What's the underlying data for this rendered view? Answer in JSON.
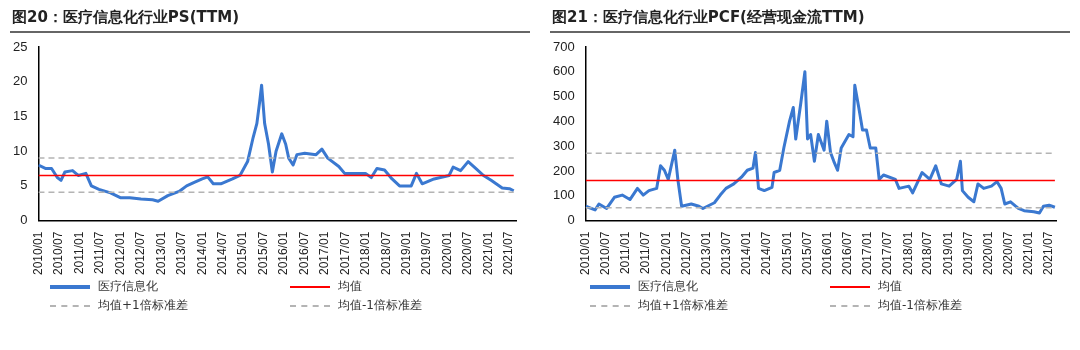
{
  "chart_data": [
    {
      "type": "line",
      "title": "图20：医疗信息化行业PS(TTM)",
      "legend": "bottom",
      "grid": false,
      "marker": "none",
      "xlim": [
        "2010-01-01",
        "2021-09-01"
      ],
      "xticks": [
        {
          "value": "2010-01",
          "label": "2010/01"
        },
        {
          "value": "2010-07",
          "label": "2010/07"
        },
        {
          "value": "2011-01",
          "label": "2011/01"
        },
        {
          "value": "2011-07",
          "label": "2011/07"
        },
        {
          "value": "2012-01",
          "label": "2012/01"
        },
        {
          "value": "2012-07",
          "label": "2012/07"
        },
        {
          "value": "2013-01",
          "label": "2013/01"
        },
        {
          "value": "2013-07",
          "label": "2013/07"
        },
        {
          "value": "2014-01",
          "label": "2014/01"
        },
        {
          "value": "2014-07",
          "label": "2014/07"
        },
        {
          "value": "2015-01",
          "label": "2015/01"
        },
        {
          "value": "2015-07",
          "label": "2015/07"
        },
        {
          "value": "2016-01",
          "label": "2016/01"
        },
        {
          "value": "2016-07",
          "label": "2016/07"
        },
        {
          "value": "2017-01",
          "label": "2017/01"
        },
        {
          "value": "2017-07",
          "label": "2017/07"
        },
        {
          "value": "2018-01",
          "label": "2018/01"
        },
        {
          "value": "2018-07",
          "label": "2018/07"
        },
        {
          "value": "2019-01",
          "label": "2019/01"
        },
        {
          "value": "2019-07",
          "label": "2019/07"
        },
        {
          "value": "2020-01",
          "label": "2020/01"
        },
        {
          "value": "2020-07",
          "label": "2020/07"
        },
        {
          "value": "2021-01",
          "label": "2021/01"
        },
        {
          "value": "2021-07",
          "label": "2021/07"
        }
      ],
      "ylim": [
        0,
        25
      ],
      "yticks": [
        0,
        5,
        10,
        15,
        20,
        25
      ],
      "series": [
        {
          "name": "医疗信息化",
          "color": "#3a78d0",
          "line_style": "solid",
          "x": [
            "2010-01-01",
            "2010-03-08",
            "2010-04-28",
            "2010-06-18",
            "2010-07-21",
            "2010-08-25",
            "2010-11-01",
            "2010-12-22",
            "2011-02-28",
            "2011-04-18",
            "2011-06-25",
            "2011-10-06",
            "2012-01-01",
            "2012-03-25",
            "2012-07-04",
            "2012-10-15",
            "2012-12-04",
            "2013-02-28",
            "2013-06-09",
            "2013-08-15",
            "2013-10-22",
            "2014-01-01",
            "2014-02-19",
            "2014-04-10",
            "2014-06-16",
            "2014-09-28",
            "2014-12-04",
            "2015-02-10",
            "2015-04-01",
            "2015-05-04",
            "2015-05-28",
            "2015-06-15",
            "2015-07-12",
            "2015-08-16",
            "2015-09-19",
            "2015-10-22",
            "2015-12-12",
            "2016-01-16",
            "2016-02-12",
            "2016-03-22",
            "2016-04-25",
            "2016-07-04",
            "2016-10-13",
            "2016-12-04",
            "2017-01-25",
            "2017-05-04",
            "2017-06-25",
            "2017-12-28",
            "2018-02-18",
            "2018-04-09",
            "2018-06-16",
            "2018-08-22",
            "2018-10-28",
            "2019-02-09",
            "2019-03-28",
            "2019-05-18",
            "2019-09-01",
            "2020-01-13",
            "2020-02-18",
            "2020-04-25",
            "2020-07-01",
            "2020-09-09",
            "2020-11-15",
            "2021-01-22",
            "2021-05-01",
            "2021-07-04",
            "2021-08-12"
          ],
          "values": [
            8,
            7.5,
            7.5,
            6.2,
            5.8,
            7,
            7.2,
            6.5,
            6.8,
            5,
            4.5,
            4,
            3.3,
            3.3,
            3.1,
            3,
            2.8,
            3.6,
            4.2,
            5,
            5.5,
            6,
            6.3,
            5.3,
            5.3,
            6,
            6.5,
            8.5,
            12,
            14,
            17,
            19.5,
            14,
            11,
            7,
            10,
            12.5,
            11,
            9,
            8,
            9.5,
            9.7,
            9.5,
            10.3,
            9,
            7.8,
            6.8,
            6.8,
            6.2,
            7.5,
            7.3,
            6,
            5,
            5,
            6.8,
            5.3,
            6,
            6.5,
            7.7,
            7.2,
            8.5,
            7.5,
            6.5,
            5.8,
            4.7,
            4.6,
            4.3
          ]
        },
        {
          "name": "均值",
          "color": "#ff0000",
          "line_style": "solid",
          "x": [
            "2010-01-01",
            "2021-08-12"
          ],
          "values": [
            6.5,
            6.5
          ]
        },
        {
          "name": "均值+1倍标准差",
          "color": "#b4b4b4",
          "line_style": "dashed",
          "x": [
            "2010-01-01",
            "2021-08-12"
          ],
          "values": [
            9,
            9
          ]
        },
        {
          "name": "均值-1倍标准差",
          "color": "#b4b4b4",
          "line_style": "dashed",
          "x": [
            "2010-01-01",
            "2021-08-12"
          ],
          "values": [
            4.1,
            4.1
          ]
        }
      ]
    },
    {
      "type": "line",
      "title": "图21：医疗信息化行业PCF(经营现金流TTM)",
      "legend": "bottom",
      "grid": false,
      "marker": "none",
      "xlim": [
        "2010-01-01",
        "2021-09-01"
      ],
      "xticks": [
        {
          "value": "2010-01",
          "label": "2010/01"
        },
        {
          "value": "2010-07",
          "label": "2010/07"
        },
        {
          "value": "2011-01",
          "label": "2011/01"
        },
        {
          "value": "2011-07",
          "label": "2011/07"
        },
        {
          "value": "2012-01",
          "label": "2012/01"
        },
        {
          "value": "2012-07",
          "label": "2012/07"
        },
        {
          "value": "2013-01",
          "label": "2013/01"
        },
        {
          "value": "2013-07",
          "label": "2013/07"
        },
        {
          "value": "2014-01",
          "label": "2014/01"
        },
        {
          "value": "2014-07",
          "label": "2014/07"
        },
        {
          "value": "2015-01",
          "label": "2015/01"
        },
        {
          "value": "2015-07",
          "label": "2015/07"
        },
        {
          "value": "2016-01",
          "label": "2016/01"
        },
        {
          "value": "2016-07",
          "label": "2016/07"
        },
        {
          "value": "2017-01",
          "label": "2017/01"
        },
        {
          "value": "2017-07",
          "label": "2017/07"
        },
        {
          "value": "2018-01",
          "label": "2018/01"
        },
        {
          "value": "2018-07",
          "label": "2018/07"
        },
        {
          "value": "2019-01",
          "label": "2019/01"
        },
        {
          "value": "2019-07",
          "label": "2019/07"
        },
        {
          "value": "2020-01",
          "label": "2020/01"
        },
        {
          "value": "2020-07",
          "label": "2020/07"
        },
        {
          "value": "2021-01",
          "label": "2021/01"
        },
        {
          "value": "2021-07",
          "label": "2021/07"
        }
      ],
      "ylim": [
        0,
        700
      ],
      "yticks": [
        0,
        100,
        200,
        300,
        400,
        500,
        600,
        700
      ],
      "series": [
        {
          "name": "医疗信息化",
          "color": "#3a78d0",
          "line_style": "solid",
          "x": [
            "2010-01-01",
            "2010-03-27",
            "2010-05-01",
            "2010-07-10",
            "2010-09-18",
            "2010-11-28",
            "2011-02-06",
            "2011-04-15",
            "2011-06-06",
            "2011-07-28",
            "2011-10-06",
            "2011-11-10",
            "2011-12-15",
            "2012-01-19",
            "2012-03-18",
            "2012-04-15",
            "2012-05-19",
            "2012-08-15",
            "2012-10-24",
            "2012-11-28",
            "2013-03-12",
            "2013-05-04",
            "2013-06-25",
            "2013-09-04",
            "2013-11-12",
            "2014-01-04",
            "2014-02-25",
            "2014-03-19",
            "2014-04-16",
            "2014-06-07",
            "2014-08-16",
            "2014-09-04",
            "2014-10-25",
            "2014-12-01",
            "2015-01-22",
            "2015-02-25",
            "2015-03-19",
            "2015-05-04",
            "2015-06-10",
            "2015-07-04",
            "2015-08-01",
            "2015-09-04",
            "2015-10-10",
            "2015-12-01",
            "2015-12-25",
            "2016-01-28",
            "2016-02-27",
            "2016-04-01",
            "2016-05-04",
            "2016-07-13",
            "2016-08-19",
            "2016-09-04",
            "2016-10-10",
            "2016-11-13",
            "2016-12-19",
            "2017-01-22",
            "2017-03-13",
            "2017-04-13",
            "2017-05-22",
            "2017-09-07",
            "2017-10-10",
            "2018-01-07",
            "2018-02-10",
            "2018-05-07",
            "2018-07-16",
            "2018-09-07",
            "2018-10-28",
            "2019-01-07",
            "2019-03-16",
            "2019-04-19",
            "2019-05-07",
            "2019-06-28",
            "2019-08-19",
            "2019-09-25",
            "2019-11-16",
            "2020-01-25",
            "2020-03-16",
            "2020-04-22",
            "2020-05-25",
            "2020-07-16",
            "2020-09-25",
            "2020-11-16",
            "2021-02-12",
            "2021-04-04",
            "2021-05-10",
            "2021-07-01",
            "2021-08-22"
          ],
          "values": [
            58,
            43,
            67,
            49,
            94,
            103,
            85,
            130,
            103,
            121,
            130,
            221,
            203,
            166,
            284,
            166,
            58,
            67,
            58,
            49,
            72,
            103,
            130,
            148,
            175,
            203,
            212,
            275,
            130,
            121,
            134,
            194,
            203,
            293,
            401,
            456,
            329,
            474,
            600,
            329,
            347,
            239,
            347,
            284,
            401,
            275,
            239,
            203,
            293,
            347,
            338,
            546,
            456,
            365,
            365,
            293,
            293,
            166,
            184,
            166,
            130,
            139,
            112,
            194,
            166,
            221,
            148,
            139,
            166,
            239,
            121,
            94,
            76,
            148,
            130,
            139,
            157,
            130,
            67,
            76,
            49,
            40,
            36,
            31,
            58,
            62,
            54
          ]
        },
        {
          "name": "均值",
          "color": "#ff0000",
          "line_style": "solid",
          "x": [
            "2010-01-01",
            "2021-08-22"
          ],
          "values": [
            162,
            162
          ]
        },
        {
          "name": "均值+1倍标准差",
          "color": "#b4b4b4",
          "line_style": "dashed",
          "x": [
            "2010-01-01",
            "2021-08-12"
          ],
          "values": [
            272,
            272
          ]
        },
        {
          "name": "均值-1倍标准差",
          "color": "#b4b4b4",
          "line_style": "dashed",
          "x": [
            "2010-01-01",
            "2021-08-12"
          ],
          "values": [
            52,
            52
          ]
        }
      ]
    }
  ]
}
